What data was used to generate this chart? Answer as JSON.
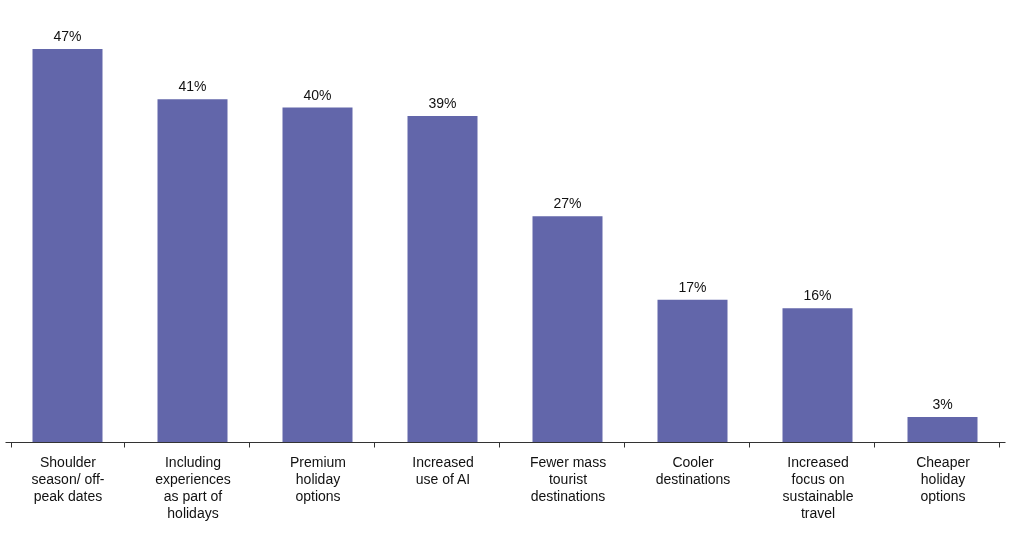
{
  "chart_data": {
    "type": "bar",
    "categories": [
      "Shoulder season/ off-peak dates",
      "Including experiences as part of holidays",
      "Premium holiday options",
      "Increased use of AI",
      "Fewer mass tourist destinations",
      "Cooler destinations",
      "Increased focus on sustainable travel",
      "Cheaper holiday options"
    ],
    "series": [
      {
        "color": "#6266aa",
        "values": [
          47,
          41,
          40,
          39,
          27,
          17,
          16,
          3
        ],
        "value_labels": [
          "47%",
          "41%",
          "40%",
          "39%",
          "27%",
          "17%",
          "16%",
          "3%"
        ]
      }
    ],
    "grid": false
  }
}
